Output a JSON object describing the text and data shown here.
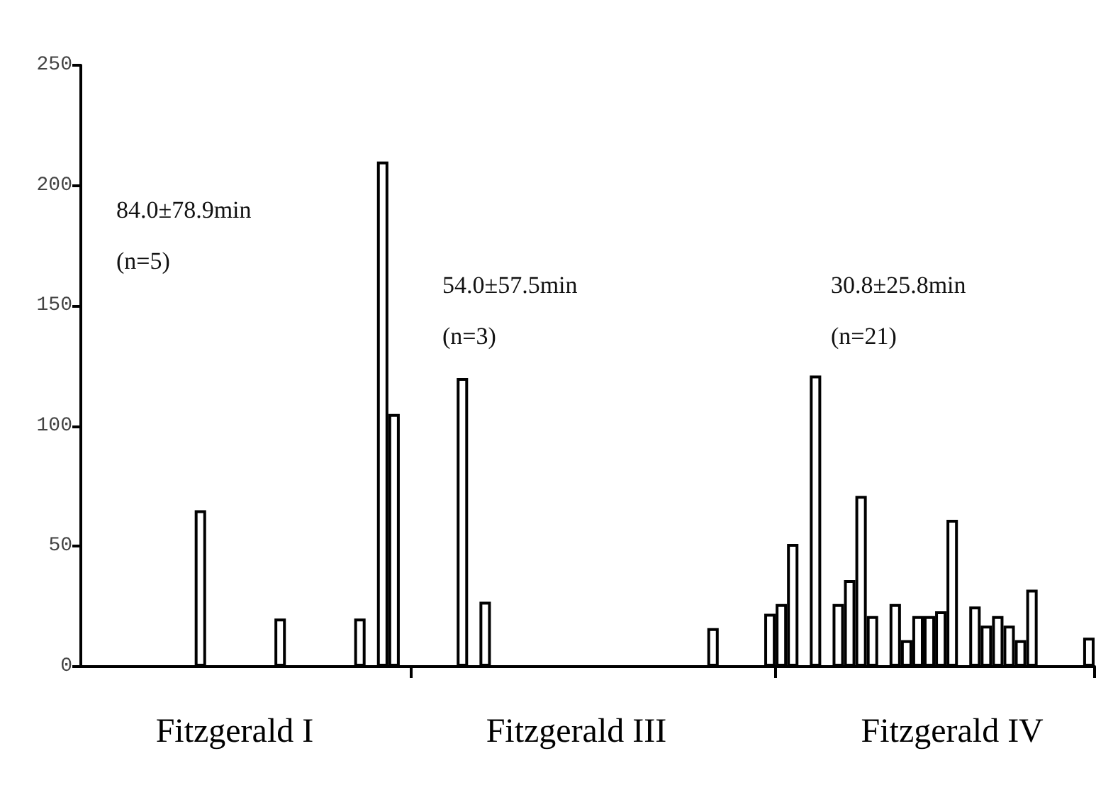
{
  "chart_data": {
    "type": "bar",
    "categories": [
      null,
      null,
      null,
      null,
      null,
      null,
      null,
      null,
      null,
      null,
      null,
      null,
      null,
      "Fitzgerald I",
      null,
      null,
      null,
      null,
      null,
      null,
      null,
      null,
      null,
      null,
      null,
      null,
      null,
      null,
      null,
      null,
      null,
      null,
      null,
      null,
      null,
      null,
      null,
      null,
      null,
      null,
      null,
      null,
      null,
      "Fitzgerald III",
      null,
      null,
      null,
      null,
      null,
      null,
      null,
      null,
      null,
      null,
      null,
      null,
      null,
      null,
      null,
      null,
      null,
      null,
      null,
      null,
      null,
      null,
      null,
      null,
      null,
      null,
      null,
      null,
      null,
      null,
      null,
      null,
      "Fitzgerald IV",
      null,
      null,
      null,
      null,
      null,
      null,
      null,
      null,
      null,
      null,
      null,
      null
    ],
    "values": [
      null,
      null,
      null,
      null,
      null,
      null,
      null,
      null,
      null,
      null,
      65,
      null,
      null,
      null,
      null,
      null,
      null,
      20,
      null,
      null,
      null,
      null,
      null,
      null,
      20,
      null,
      210,
      105,
      null,
      null,
      null,
      null,
      null,
      120,
      null,
      27,
      null,
      null,
      null,
      null,
      null,
      null,
      null,
      null,
      null,
      null,
      null,
      null,
      null,
      null,
      null,
      null,
      null,
      null,
      null,
      16,
      null,
      null,
      null,
      null,
      22,
      26,
      51,
      null,
      121,
      null,
      26,
      36,
      71,
      21,
      null,
      26,
      11,
      21,
      21,
      23,
      61,
      null,
      25,
      17,
      21,
      17,
      11,
      32,
      null,
      null,
      null,
      null,
      12
    ],
    "color": "#000000",
    "ylim": [
      0,
      250
    ],
    "yticks": [
      0,
      50,
      100,
      150,
      200,
      250
    ],
    "grid": false,
    "annotations": [
      "84.0±78.9min\n(n=5)",
      "54.0±57.5min\n(n=3)",
      "30.8±25.8min\n(n=21)"
    ]
  }
}
